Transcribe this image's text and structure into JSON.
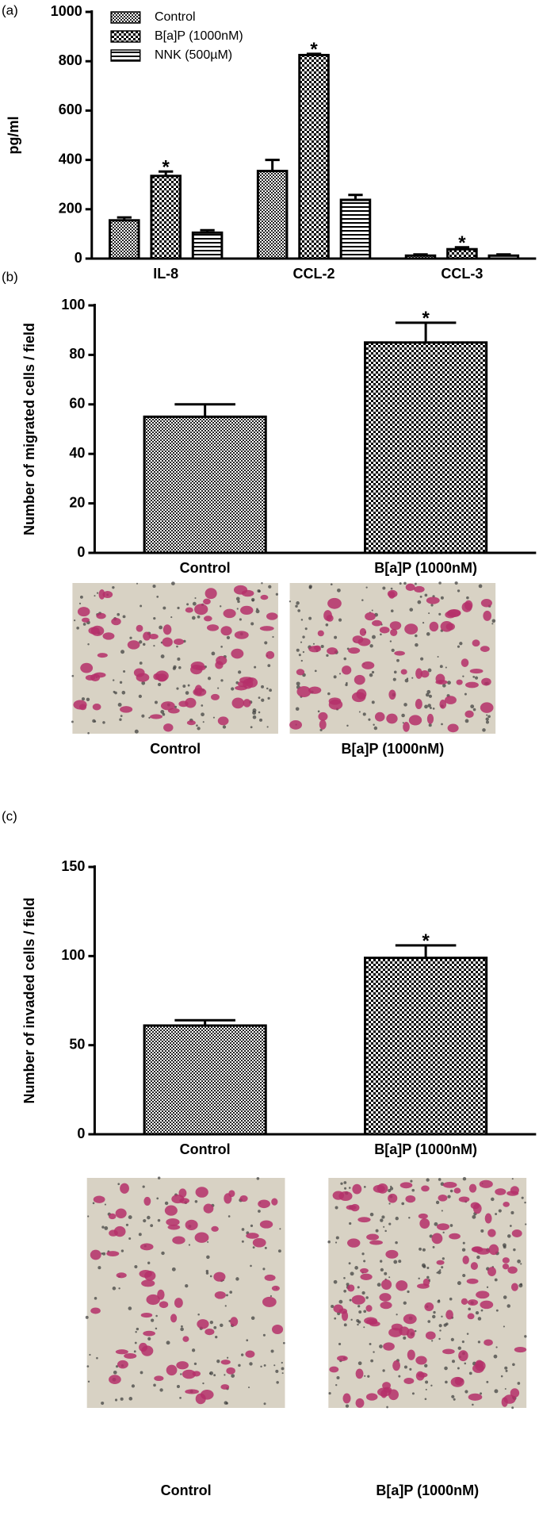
{
  "chart_data": [
    {
      "type": "bar",
      "panel": "(a)",
      "ylabel": "pg/ml",
      "categories": [
        "IL-8",
        "CCL-2",
        "CCL-3"
      ],
      "series": [
        {
          "name": "Control",
          "color": "#000000",
          "values": [
            155,
            355,
            12
          ],
          "errors": [
            12,
            45,
            5
          ],
          "annotations": [
            null,
            null,
            null
          ]
        },
        {
          "name": "B[a]P (1000nM)",
          "color": "#000000",
          "values": [
            335,
            825,
            38
          ],
          "errors": [
            18,
            5,
            8
          ],
          "annotations": [
            "*",
            "*",
            "*"
          ]
        },
        {
          "name": "NNK (500µM)",
          "color": "#000000",
          "values": [
            105,
            238,
            12
          ],
          "errors": [
            10,
            20,
            5
          ],
          "annotations": [
            null,
            null,
            null
          ]
        }
      ],
      "ylim": [
        0,
        1000
      ],
      "yticks": [
        0,
        200,
        400,
        600,
        800,
        1000
      ],
      "legend": "upper left"
    },
    {
      "type": "bar",
      "panel": "(b)",
      "ylabel": "Number of migrated cells / field",
      "categories": [
        "Control",
        "B[a]P (1000nM)"
      ],
      "values": [
        55,
        85
      ],
      "errors": [
        5,
        8
      ],
      "annotations": [
        null,
        "*"
      ],
      "color": "#000000",
      "ylim": [
        0,
        100
      ],
      "yticks": [
        0,
        20,
        40,
        60,
        80,
        100
      ],
      "image_captions": [
        "Control",
        "B[a]P (1000nM)"
      ]
    },
    {
      "type": "bar",
      "panel": "(c)",
      "ylabel": "Number of invaded cells / field",
      "categories": [
        "Control",
        "B[a]P (1000nM)"
      ],
      "values": [
        61,
        99
      ],
      "errors": [
        3,
        7
      ],
      "annotations": [
        null,
        "*"
      ],
      "color": "#000000",
      "ylim": [
        0,
        150
      ],
      "yticks": [
        0,
        50,
        100,
        150
      ],
      "image_captions": [
        "Control",
        "B[a]P (1000nM)"
      ]
    }
  ]
}
